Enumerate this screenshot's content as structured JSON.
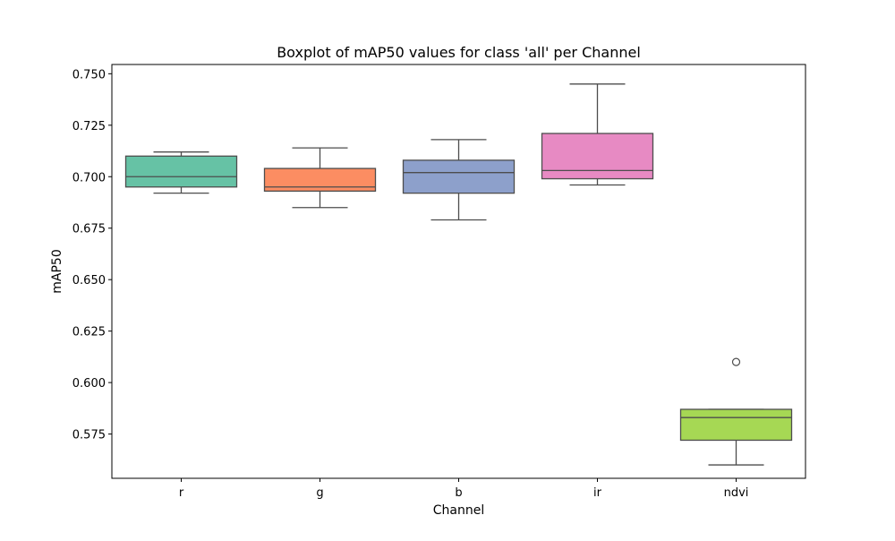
{
  "chart_data": {
    "type": "boxplot",
    "title": "Boxplot of mAP50 values for class 'all' per Channel",
    "xlabel": "Channel",
    "ylabel": "mAP50",
    "categories": [
      "r",
      "g",
      "b",
      "ir",
      "ndvi"
    ],
    "ylim": [
      0.5535,
      0.7545
    ],
    "yticks": [
      0.575,
      0.6,
      0.625,
      0.65,
      0.675,
      0.7,
      0.725,
      0.75
    ],
    "ytick_labels": [
      "0.575",
      "0.600",
      "0.625",
      "0.650",
      "0.675",
      "0.700",
      "0.725",
      "0.750"
    ],
    "grid": false,
    "boxes": [
      {
        "category": "r",
        "whisker_low": 0.692,
        "q1": 0.695,
        "median": 0.7,
        "q3": 0.71,
        "whisker_high": 0.712,
        "outliers": [],
        "color": "#66c2a5"
      },
      {
        "category": "g",
        "whisker_low": 0.685,
        "q1": 0.693,
        "median": 0.695,
        "q3": 0.704,
        "whisker_high": 0.714,
        "outliers": [],
        "color": "#fc8d62"
      },
      {
        "category": "b",
        "whisker_low": 0.679,
        "q1": 0.692,
        "median": 0.702,
        "q3": 0.708,
        "whisker_high": 0.718,
        "outliers": [],
        "color": "#8da0cb"
      },
      {
        "category": "ir",
        "whisker_low": 0.696,
        "q1": 0.699,
        "median": 0.703,
        "q3": 0.721,
        "whisker_high": 0.745,
        "outliers": [],
        "color": "#e78ac3"
      },
      {
        "category": "ndvi",
        "whisker_low": 0.56,
        "q1": 0.572,
        "median": 0.583,
        "q3": 0.587,
        "whisker_high": 0.587,
        "outliers": [
          0.61
        ],
        "color": "#a6d854"
      }
    ]
  }
}
